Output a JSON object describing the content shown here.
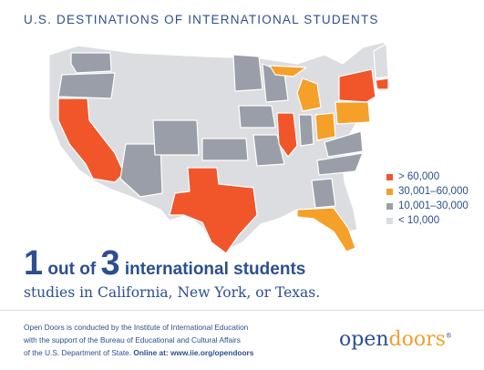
{
  "title": "U.S. DESTINATIONS OF INTERNATIONAL STUDENTS",
  "colors": {
    "over_60000": "#f0562a",
    "range_30001_60000": "#f5a028",
    "range_10001_30000": "#9a9ea8",
    "under_10000": "#dcdde1",
    "text": "#2c4f8f"
  },
  "legend": [
    {
      "label": "> 60,000",
      "color": "#f0562a"
    },
    {
      "label": "30,001–60,000",
      "color": "#f5a028"
    },
    {
      "label": "10,001–30,000",
      "color": "#9a9ea8"
    },
    {
      "label": "< 10,000",
      "color": "#dcdde1"
    }
  ],
  "headline": {
    "num1": "1",
    "text1": " out of ",
    "num2": "3",
    "text2": " international students"
  },
  "subline": "studies in California, New York, or Texas.",
  "footer": {
    "line1": "Open Doors is conducted by the Institute of International Education",
    "line2": "with the support of the Bureau of Educational and Cultural Affairs",
    "line3": "of the U.S. Department of State. ",
    "line3_bold": "Online at: www.iie.org/opendoors"
  },
  "logo": {
    "part1": "open",
    "part2": "doors",
    "mark": "®"
  }
}
